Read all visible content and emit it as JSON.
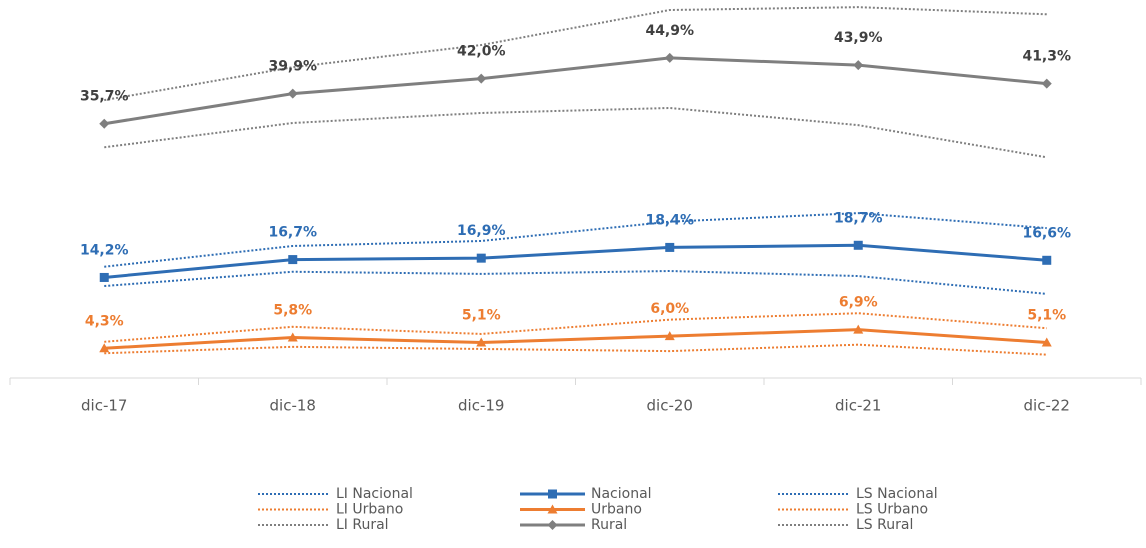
{
  "chart_data": {
    "type": "line",
    "categories": [
      "dic-17",
      "dic-18",
      "dic-19",
      "dic-20",
      "dic-21",
      "dic-22"
    ],
    "ylim": [
      0,
      53
    ],
    "series": [
      {
        "name": "LI Nacional",
        "color": "#2e6db4",
        "dotted": true,
        "values": [
          13.0,
          15.0,
          14.7,
          15.1,
          14.4,
          11.9
        ]
      },
      {
        "name": "Nacional",
        "color": "#2e6db4",
        "marker": "square",
        "values": [
          14.2,
          16.7,
          16.9,
          18.4,
          18.7,
          16.6
        ],
        "value_labels": [
          "14,2%",
          "16,7%",
          "16,9%",
          "18,4%",
          "18,7%",
          "16,6%"
        ]
      },
      {
        "name": "LS Nacional",
        "color": "#2e6db4",
        "dotted": true,
        "values": [
          15.7,
          18.6,
          19.3,
          22.0,
          23.2,
          21.1
        ]
      },
      {
        "name": "LI Urbano",
        "color": "#ed7d31",
        "dotted": true,
        "values": [
          3.6,
          4.5,
          4.2,
          3.9,
          4.8,
          3.4
        ]
      },
      {
        "name": "Urbano",
        "color": "#ed7d31",
        "marker": "triangle",
        "values": [
          4.3,
          5.8,
          5.1,
          6.0,
          6.9,
          5.1
        ],
        "value_labels": [
          "4,3%",
          "5,8%",
          "5,1%",
          "6,0%",
          "6,9%",
          "5,1%"
        ]
      },
      {
        "name": "LS Urbano",
        "color": "#ed7d31",
        "dotted": true,
        "values": [
          5.2,
          7.3,
          6.3,
          8.3,
          9.2,
          7.1
        ]
      },
      {
        "name": "LI Rural",
        "color": "#7f7f7f",
        "dotted": true,
        "values": [
          32.4,
          35.8,
          37.2,
          37.9,
          35.5,
          31.0
        ]
      },
      {
        "name": "Rural",
        "color": "#7f7f7f",
        "marker": "diamond",
        "label_color": "#404040",
        "values": [
          35.7,
          39.9,
          42.0,
          44.9,
          43.9,
          41.3
        ],
        "value_labels": [
          "35,7%",
          "39,9%",
          "42,0%",
          "44,9%",
          "43,9%",
          "41,3%"
        ]
      },
      {
        "name": "LS Rural",
        "color": "#7f7f7f",
        "dotted": true,
        "values": [
          39.0,
          43.6,
          46.7,
          51.6,
          52.0,
          51.0
        ]
      }
    ]
  }
}
